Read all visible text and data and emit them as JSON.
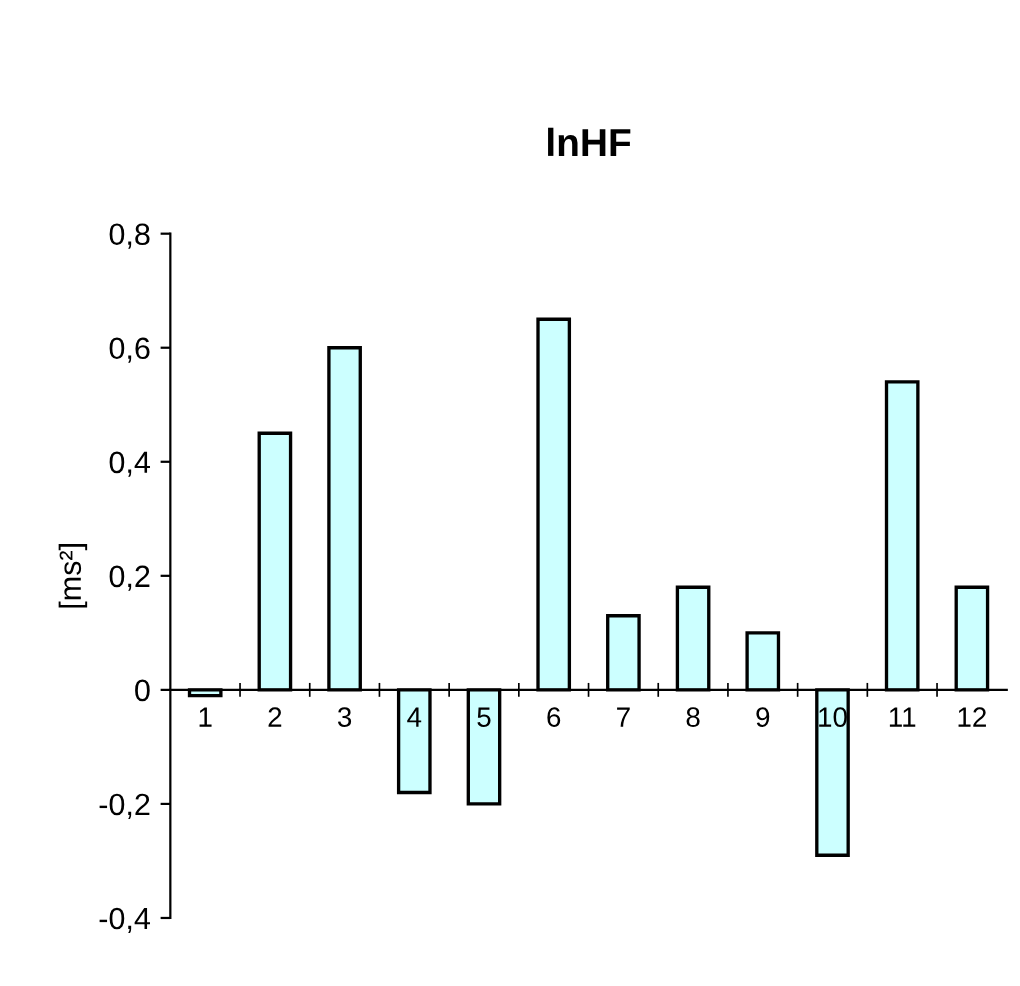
{
  "chart_data": {
    "type": "bar",
    "title": "lnHF",
    "ylabel": "[ms²]",
    "categories": [
      "1",
      "2",
      "3",
      "4",
      "5",
      "6",
      "7",
      "8",
      "9",
      "10",
      "11",
      "12"
    ],
    "values": [
      -0.01,
      0.45,
      0.6,
      -0.18,
      -0.2,
      0.65,
      0.13,
      0.18,
      0.1,
      -0.29,
      0.54,
      0.18
    ],
    "color": "#ccffff",
    "ylim": [
      -0.4,
      0.8
    ],
    "yticks": [
      {
        "value": -0.4,
        "label": "-0,4"
      },
      {
        "value": -0.2,
        "label": "-0,2"
      },
      {
        "value": 0,
        "label": "0"
      },
      {
        "value": 0.2,
        "label": "0,2"
      },
      {
        "value": 0.4,
        "label": "0,4"
      },
      {
        "value": 0.6,
        "label": "0,6"
      },
      {
        "value": 0.8,
        "label": "0,8"
      }
    ],
    "grid": false,
    "legend": false
  }
}
